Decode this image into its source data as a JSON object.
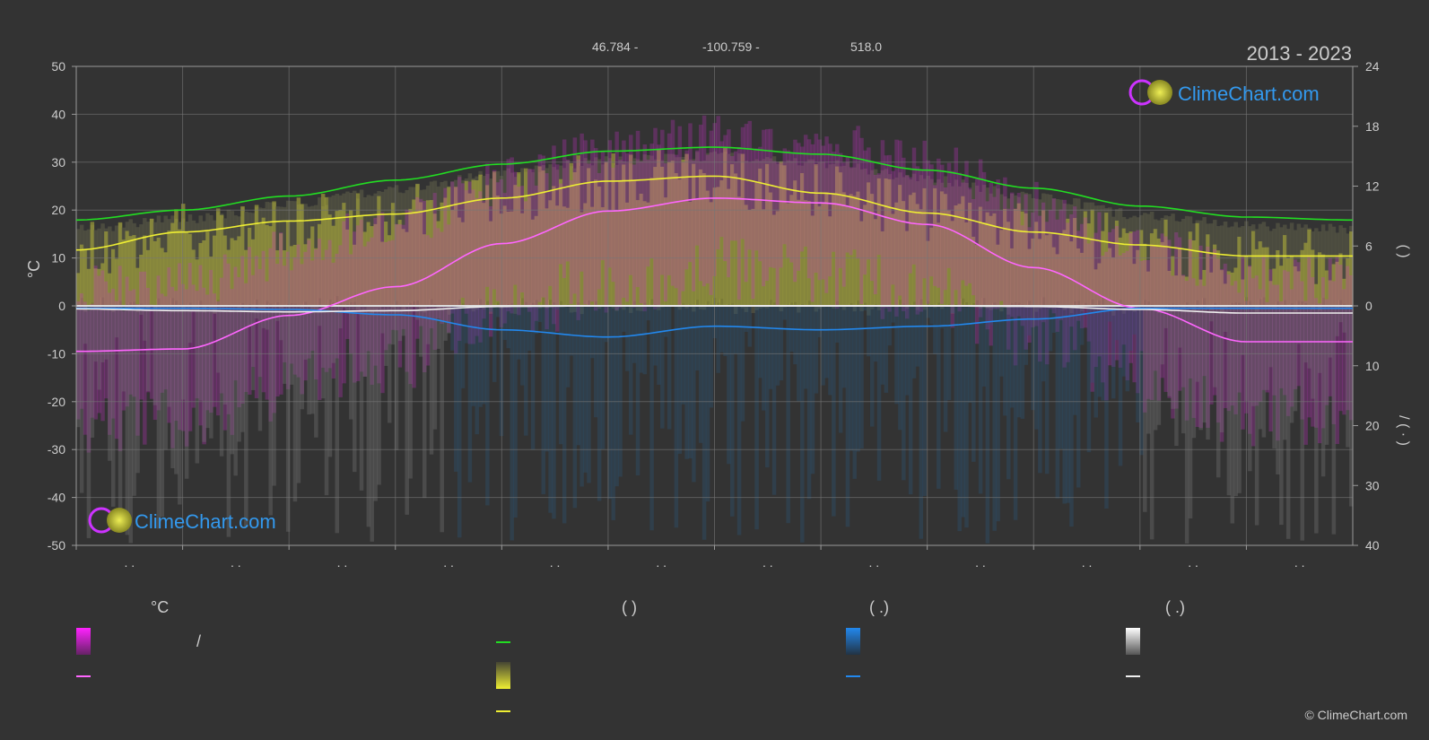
{
  "header": {
    "latitude": "46.784 -",
    "longitude": "-100.759 -",
    "elevation": "518.0",
    "years": "2013 - 2023"
  },
  "brand": {
    "name": "ClimeChart.com",
    "copyright": "© ClimeChart.com"
  },
  "axes": {
    "left_label": "°C",
    "left_ticks": [
      "50",
      "40",
      "30",
      "20",
      "10",
      "0",
      "-10",
      "-20",
      "-30",
      "-40",
      "-50"
    ],
    "right_top_ticks": [
      "24",
      "18",
      "12",
      "6",
      "0"
    ],
    "right_bottom_ticks": [
      "10",
      "20",
      "30",
      "40"
    ],
    "right_label_top": "(      )",
    "right_label_bottom": "/      (  ·  )",
    "month_ticks": [
      ". .",
      ". .",
      ". .",
      ". .",
      ". .",
      ". .",
      ". .",
      ". .",
      ". .",
      ". .",
      ". .",
      ". ."
    ]
  },
  "legend": {
    "col1_header": "°C",
    "col1_row1_sep": "/",
    "col2_header": "(          )",
    "col3_header": "(   .)",
    "col4_header": "(   .)"
  },
  "chart_data": {
    "type": "line",
    "ylim_left": [
      -50,
      50
    ],
    "ylim_right_top": [
      0,
      24
    ],
    "ylim_right_bottom": [
      0,
      40
    ],
    "months": 12,
    "series": [
      {
        "name": "",
        "color": "#22dd22",
        "axis": "right-top",
        "x": [
          0,
          1,
          2,
          3,
          4,
          5,
          6,
          7,
          8,
          9,
          10,
          11,
          12
        ],
        "values": [
          8.6,
          9.6,
          11.0,
          12.6,
          14.2,
          15.5,
          15.9,
          15.2,
          13.6,
          11.8,
          10.0,
          8.9,
          8.6
        ]
      },
      {
        "name": "",
        "color": "#eeee33",
        "axis": "right-top",
        "x": [
          0,
          1,
          2,
          3,
          4,
          5,
          6,
          7,
          8,
          9,
          10,
          11,
          12
        ],
        "values": [
          5.6,
          7.4,
          8.5,
          9.2,
          10.8,
          12.5,
          13.0,
          11.3,
          9.3,
          7.4,
          6.1,
          5.0,
          5.0
        ]
      },
      {
        "name": "",
        "color": "#ff66ff",
        "axis": "left",
        "x": [
          0,
          1,
          2,
          3,
          4,
          5,
          6,
          7,
          8,
          9,
          10,
          11,
          12
        ],
        "values": [
          -9.5,
          -9.0,
          -2.0,
          4.0,
          13.0,
          19.8,
          22.5,
          21.5,
          17.0,
          8.0,
          -0.5,
          -7.5,
          -7.5
        ]
      },
      {
        "name": "",
        "color": "#2288ee",
        "axis": "right-bottom",
        "x": [
          0,
          1,
          2,
          3,
          4,
          5,
          6,
          7,
          8,
          9,
          10,
          11,
          12
        ],
        "values": [
          0.4,
          0.4,
          0.6,
          1.5,
          4.0,
          5.2,
          3.4,
          4.0,
          3.4,
          2.2,
          0.4,
          0.4,
          0.4
        ]
      },
      {
        "name": "",
        "color": "#eeeeee",
        "axis": "right-bottom",
        "x": [
          0,
          1,
          2,
          3,
          4,
          5,
          6,
          7,
          8,
          9,
          10,
          11,
          12
        ],
        "values": [
          0.5,
          0.8,
          1.0,
          0.8,
          0.1,
          0.0,
          0.0,
          0.0,
          0.0,
          0.1,
          0.6,
          1.2,
          1.2
        ]
      }
    ],
    "grid": true
  }
}
